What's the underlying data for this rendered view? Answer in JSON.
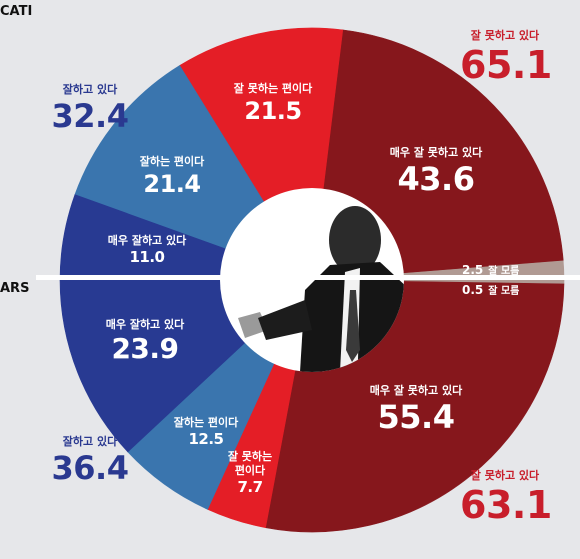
{
  "colors": {
    "background": "#e6e7ea",
    "very_good": "#283a92",
    "good": "#3a75ae",
    "bad": "#e41e26",
    "very_bad": "#86171c",
    "unknown": "#b09a93",
    "positive_total_text": "#2a3990",
    "negative_total_text": "#c81e2b"
  },
  "chart_data": [
    {
      "type": "pie",
      "panel": "CATI",
      "half": "top",
      "slices": [
        {
          "label": "매우 잘 못하고 있다",
          "value": 43.6,
          "color": "#86171c"
        },
        {
          "label": "잘 못하는 편이다",
          "value": 21.5,
          "color": "#e41e26"
        },
        {
          "label": "잘하는 편이다",
          "value": 21.4,
          "color": "#3a75ae"
        },
        {
          "label": "매우 잘하고 있다",
          "value": 11.0,
          "color": "#283a92"
        },
        {
          "label": "잘 모름",
          "value": 2.5,
          "color": "#b09a93"
        }
      ],
      "totals": [
        {
          "label": "잘하고 있다",
          "value": 32.4
        },
        {
          "label": "잘 못하고 있다",
          "value": 65.1
        }
      ]
    },
    {
      "type": "pie",
      "panel": "ARS",
      "half": "bottom",
      "slices": [
        {
          "label": "잘 모름",
          "value": 0.5,
          "color": "#b09a93"
        },
        {
          "label": "매우 잘 못하고 있다",
          "value": 55.4,
          "color": "#86171c"
        },
        {
          "label": "잘 못하는 편이다",
          "value": 7.7,
          "color": "#e41e26"
        },
        {
          "label": "잘하는 편이다",
          "value": 12.5,
          "color": "#3a75ae"
        },
        {
          "label": "매우 잘하고 있다",
          "value": 23.9,
          "color": "#283a92"
        }
      ],
      "totals": [
        {
          "label": "잘하고 있다",
          "value": 36.4
        },
        {
          "label": "잘 못하고 있다",
          "value": 63.1
        }
      ]
    }
  ],
  "labels": {
    "cati_tag": "CATI",
    "ars_tag": "ARS",
    "cati": {
      "very_bad": {
        "sub": "매우 잘 못하고 있다",
        "val": "43.6"
      },
      "bad": {
        "sub": "잘 못하는 편이다",
        "val": "21.5"
      },
      "good": {
        "sub": "잘하는 편이다",
        "val": "21.4"
      },
      "very_good": {
        "sub": "매우 잘하고 있다",
        "val": "11.0"
      },
      "unknown": {
        "sub": "잘 모름",
        "val": "2.5"
      },
      "total_pos": {
        "sub": "잘하고 있다",
        "val": "32.4"
      },
      "total_neg": {
        "sub": "잘 못하고 있다",
        "val": "65.1"
      }
    },
    "ars": {
      "very_bad": {
        "sub": "매우 잘 못하고 있다",
        "val": "55.4"
      },
      "bad": {
        "sub": "잘 못하는\n편이다",
        "val": "7.7"
      },
      "good": {
        "sub": "잘하는 편이다",
        "val": "12.5"
      },
      "very_good": {
        "sub": "매우 잘하고 있다",
        "val": "23.9"
      },
      "unknown": {
        "sub": "잘 모름",
        "val": "0.5"
      },
      "total_pos": {
        "sub": "잘하고 있다",
        "val": "36.4"
      },
      "total_neg": {
        "sub": "잘 못하고 있다",
        "val": "63.1"
      }
    }
  }
}
